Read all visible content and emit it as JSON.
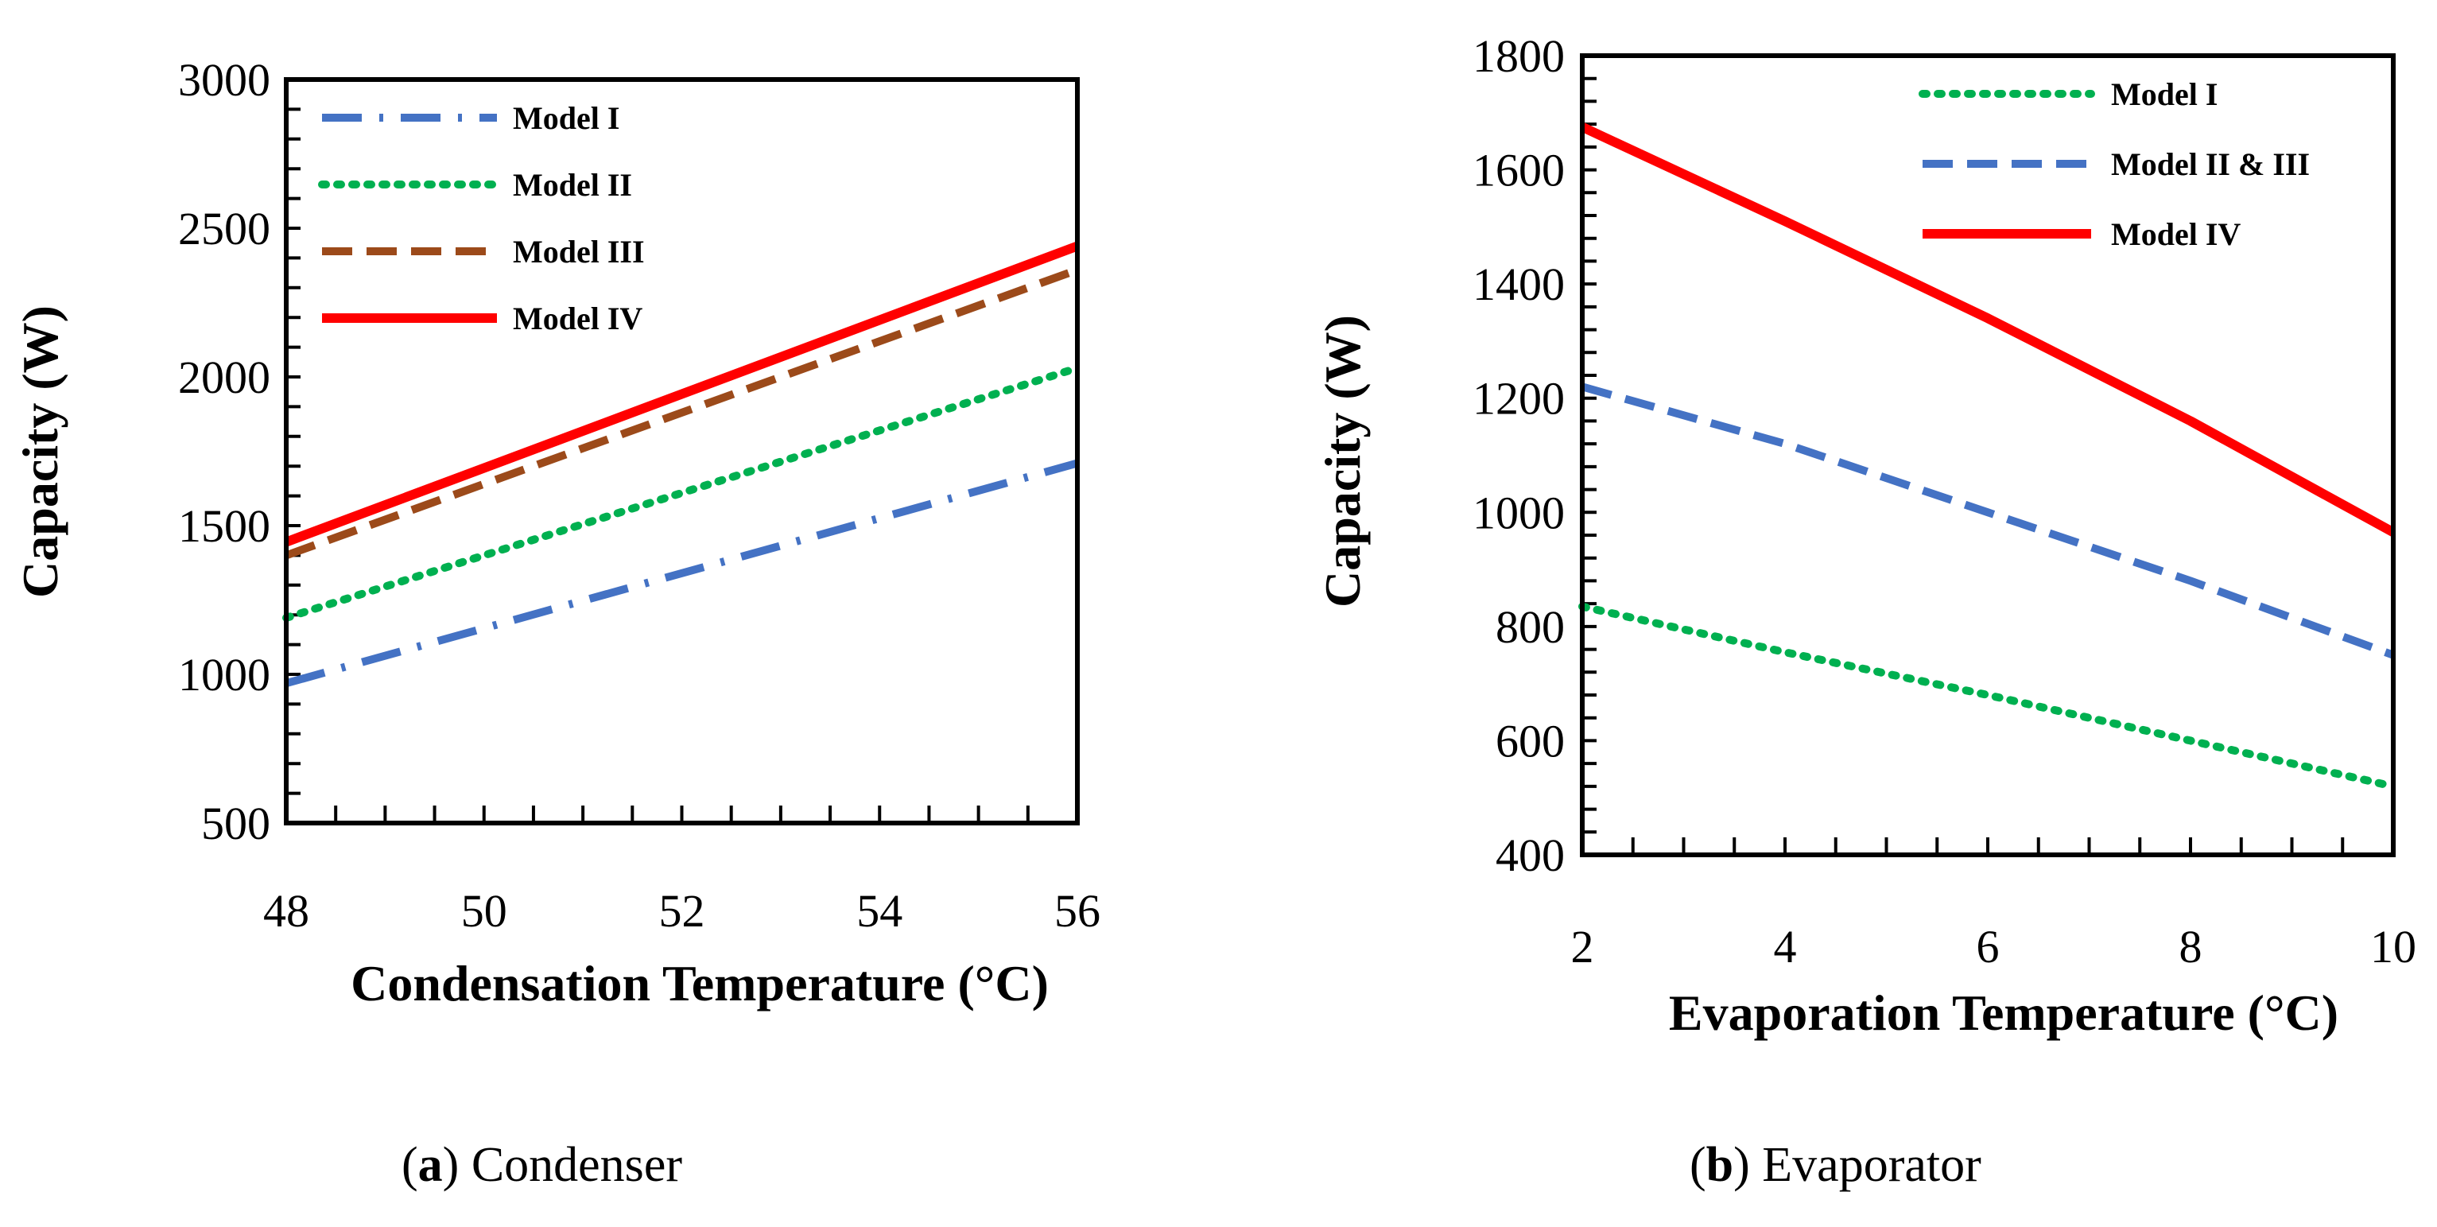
{
  "chart_data": [
    {
      "type": "line",
      "panel_letter": "a",
      "caption": "Condenser",
      "xlabel": "Condensation Temperature (°C)",
      "ylabel": "Capacity (W)",
      "xlim": [
        48,
        56
      ],
      "ylim": [
        500,
        3000
      ],
      "xticks": [
        48,
        50,
        52,
        54,
        56
      ],
      "yticks": [
        500,
        1000,
        1500,
        2000,
        2500,
        3000
      ],
      "grid": false,
      "legend_position": "top-left",
      "series": [
        {
          "name": "Model I",
          "color": "#4472C4",
          "style": "dashdot",
          "x": [
            48,
            56
          ],
          "y": [
            970,
            1710
          ]
        },
        {
          "name": "Model II",
          "color": "#00B050",
          "style": "dotted",
          "x": [
            48,
            56
          ],
          "y": [
            1190,
            2030
          ]
        },
        {
          "name": "Model III",
          "color": "#9C4A1A",
          "style": "dashed",
          "x": [
            48,
            56
          ],
          "y": [
            1400,
            2360
          ]
        },
        {
          "name": "Model IV",
          "color": "#FF0000",
          "style": "solid",
          "x": [
            48,
            56
          ],
          "y": [
            1445,
            2440
          ]
        }
      ]
    },
    {
      "type": "line",
      "panel_letter": "b",
      "caption": "Evaporator",
      "xlabel": "Evaporation Temperature (°C)",
      "ylabel": "Capacity (W)",
      "xlim": [
        2,
        10
      ],
      "ylim": [
        400,
        1800
      ],
      "xticks": [
        2,
        4,
        6,
        8,
        10
      ],
      "yticks": [
        400,
        600,
        800,
        1000,
        1200,
        1400,
        1600,
        1800
      ],
      "grid": false,
      "legend_position": "top-right",
      "series": [
        {
          "name": "Model I",
          "color": "#00B050",
          "style": "dotted",
          "x": [
            2,
            4,
            6,
            8,
            10
          ],
          "y": [
            835,
            755,
            680,
            600,
            520
          ]
        },
        {
          "name": "Model II & III",
          "color": "#4472C4",
          "style": "dashed",
          "x": [
            2,
            4,
            6,
            8,
            10
          ],
          "y": [
            1220,
            1120,
            1000,
            880,
            750
          ]
        },
        {
          "name": "Model IV",
          "color": "#FF0000",
          "style": "solid",
          "x": [
            2,
            4,
            6,
            8,
            10
          ],
          "y": [
            1675,
            1510,
            1340,
            1160,
            965
          ]
        }
      ]
    }
  ]
}
